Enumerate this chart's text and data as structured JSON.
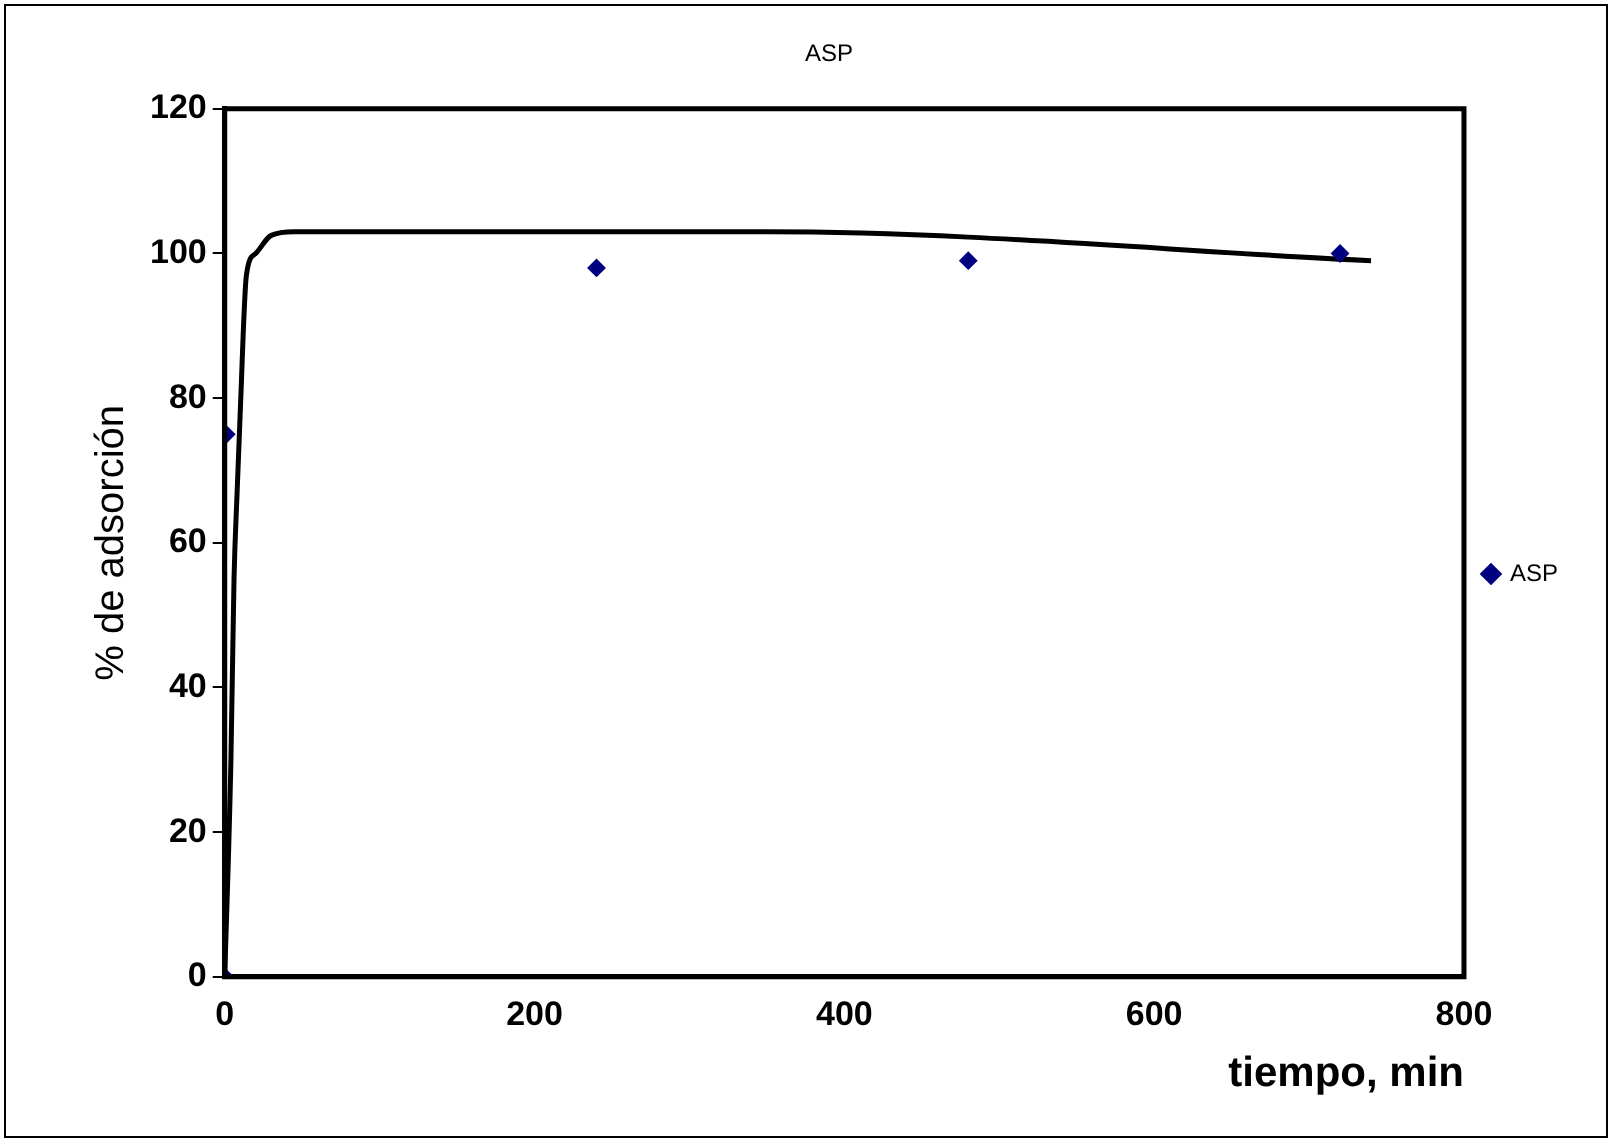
{
  "chart_data": {
    "type": "scatter",
    "title": "ASP",
    "xlabel": "tiempo, min",
    "ylabel": "% de adsorción",
    "xlim": [
      0,
      800
    ],
    "xticks": [
      0,
      200,
      400,
      600,
      800
    ],
    "ylim": [
      0,
      120
    ],
    "yticks": [
      0,
      20,
      40,
      60,
      80,
      100,
      120
    ],
    "grid": false,
    "legend": "right",
    "marker": "diamond",
    "series": [
      {
        "name": "ASP",
        "color": "#000080",
        "x": [
          0,
          1,
          240,
          480,
          720
        ],
        "values": [
          0,
          75,
          98,
          99,
          100
        ]
      },
      {
        "type": "line",
        "color": "#000000",
        "marker": "none",
        "line_style": "solid",
        "x": [
          0,
          4,
          6,
          8,
          10,
          14,
          20,
          30,
          45,
          350,
          740
        ],
        "values": [
          0,
          30,
          55,
          67,
          78,
          97,
          100,
          102.5,
          103,
          103,
          99
        ]
      }
    ]
  }
}
